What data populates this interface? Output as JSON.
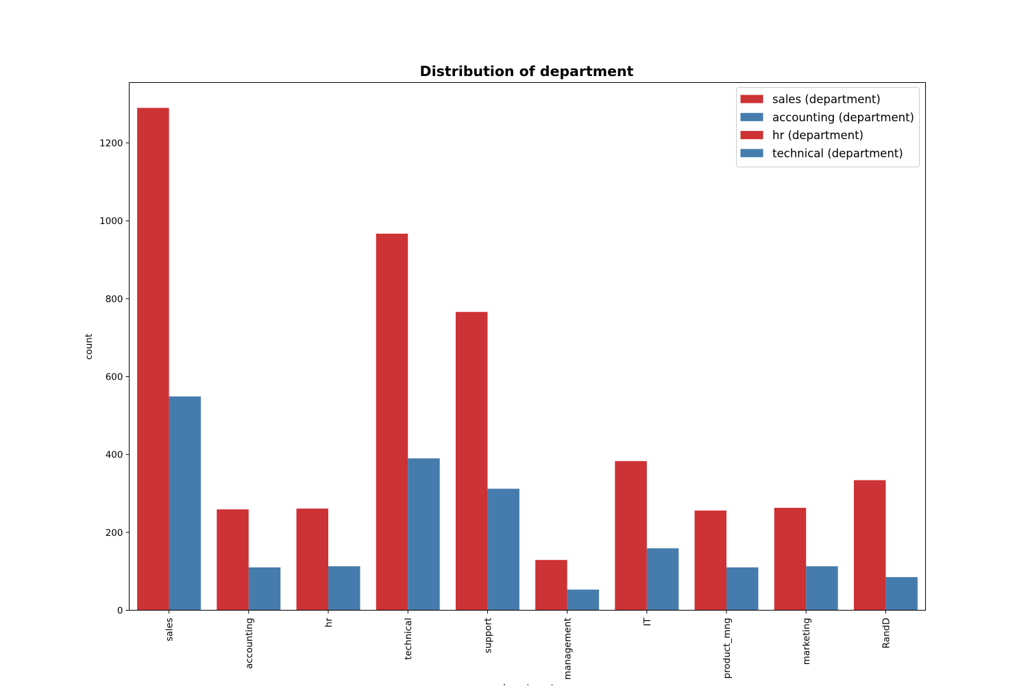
{
  "chart_data": {
    "type": "bar",
    "title": "Distribution of department",
    "xlabel": "department",
    "ylabel": "count",
    "categories": [
      "sales",
      "accounting",
      "hr",
      "technical",
      "support",
      "management",
      "IT",
      "product_mng",
      "marketing",
      "RandD"
    ],
    "series": [
      {
        "color": "#cd3235",
        "values": [
          1290,
          259,
          261,
          967,
          766,
          129,
          383,
          256,
          263,
          334
        ]
      },
      {
        "color": "#457cad",
        "values": [
          549,
          110,
          113,
          390,
          312,
          53,
          159,
          110,
          113,
          85
        ]
      }
    ],
    "ylim": [
      0,
      1355
    ],
    "yticks": [
      0,
      200,
      400,
      600,
      800,
      1000,
      1200
    ],
    "grid": false,
    "legend": {
      "placement": "upper right",
      "entries": [
        {
          "label": "sales (department)",
          "color": "#cd3235"
        },
        {
          "label": "accounting (department)",
          "color": "#457cad"
        },
        {
          "label": "hr (department)",
          "color": "#cd3235"
        },
        {
          "label": "technical (department)",
          "color": "#457cad"
        }
      ]
    }
  }
}
